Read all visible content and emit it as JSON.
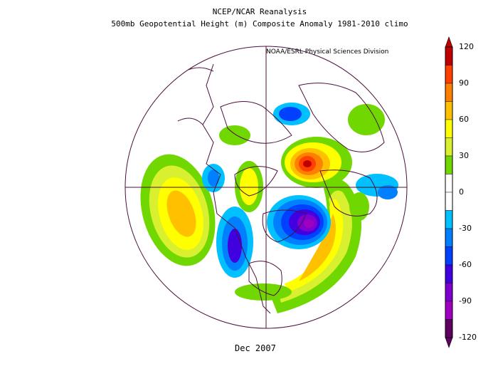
{
  "header": {
    "title": "NCEP/NCAR Reanalysis",
    "subtitle": "500mb Geopotential Height (m) Composite Anomaly 1981-2010 climo",
    "credit": "NOAA/ESRL Physical Sciences Division"
  },
  "footer": {
    "period": "Dec 2007"
  },
  "colorbar": {
    "ticks": [
      "120",
      "90",
      "60",
      "30",
      "0",
      "-30",
      "-60",
      "-90",
      "-120"
    ],
    "colors": [
      "#c00000",
      "#ff4000",
      "#ff8000",
      "#ffc000",
      "#ffff00",
      "#d8f030",
      "#70d800",
      "#ffffff",
      "#ffffff",
      "#00c0ff",
      "#0080ff",
      "#0040ff",
      "#4000e0",
      "#8000d0",
      "#a000c0",
      "#600060"
    ]
  },
  "map": {
    "projection": "north-polar-stereographic",
    "colors": {
      "coast": "#4b103e",
      "background": "#ffffff"
    }
  }
}
